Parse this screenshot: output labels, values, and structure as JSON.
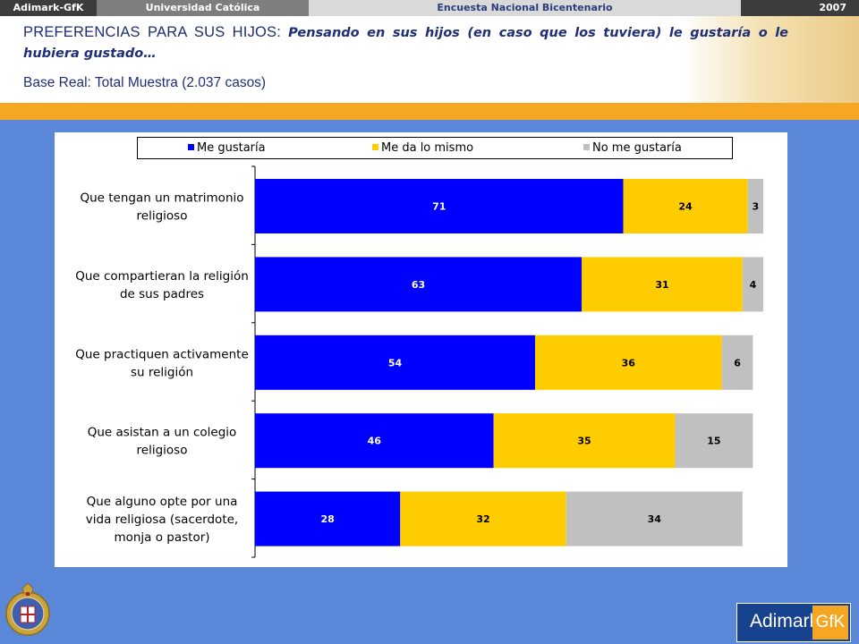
{
  "topbar": {
    "left": "Adimark-GfK",
    "university": "Universidad Católica",
    "survey": "Encuesta Nacional Bicentenario",
    "year": "2007"
  },
  "header": {
    "title_main": "PREFERENCIAS PARA SUS HIJOS:",
    "title_sub": "Pensando en sus hijos (en caso que los tuviera) le gustaría o le hubiera gustado…",
    "base": "Base Real: Total Muestra (2.037 casos)"
  },
  "logo": {
    "left": "Adimark",
    "right": "GfK"
  },
  "colors": {
    "background": "#5b87d9",
    "accent_orange": "#f5a623",
    "series_1": "#0000ff",
    "series_2": "#ffcc00",
    "series_3": "#c0c0c0"
  },
  "chart_data": {
    "type": "bar",
    "orientation": "horizontal",
    "stacked": true,
    "categories": [
      [
        "Que tengan un matrimonio",
        "religioso"
      ],
      [
        "Que compartieran la religión",
        "de sus padres"
      ],
      [
        "Que practiquen activamente",
        "su religión"
      ],
      [
        "Que asistan a un colegio",
        "religioso"
      ],
      [
        "Que alguno opte por una",
        "vida religiosa (sacerdote,",
        "monja o pastor)"
      ]
    ],
    "series": [
      {
        "name": "Me gustaría",
        "color": "#0000ff",
        "values": [
          71,
          63,
          54,
          46,
          28
        ]
      },
      {
        "name": "Me da lo mismo",
        "color": "#ffcc00",
        "values": [
          24,
          31,
          36,
          35,
          32
        ]
      },
      {
        "name": "No me gustaría",
        "color": "#c0c0c0",
        "values": [
          3,
          4,
          6,
          15,
          34
        ]
      }
    ],
    "xlim": [
      0,
      98
    ],
    "legend": "top",
    "grid": false
  }
}
